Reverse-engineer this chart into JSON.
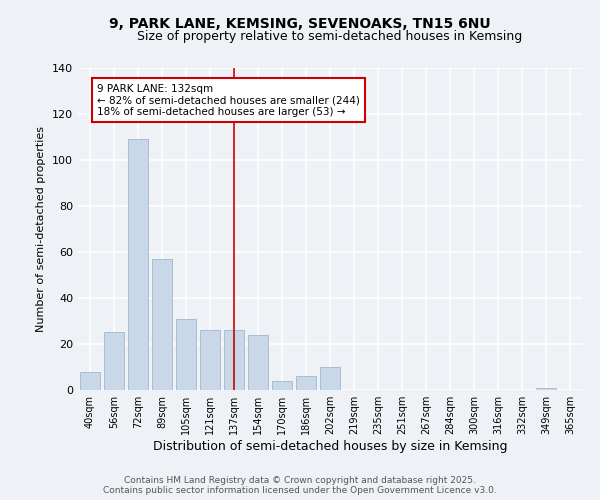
{
  "title": "9, PARK LANE, KEMSING, SEVENOAKS, TN15 6NU",
  "subtitle": "Size of property relative to semi-detached houses in Kemsing",
  "xlabel": "Distribution of semi-detached houses by size in Kemsing",
  "ylabel": "Number of semi-detached properties",
  "bar_labels": [
    "40sqm",
    "56sqm",
    "72sqm",
    "89sqm",
    "105sqm",
    "121sqm",
    "137sqm",
    "154sqm",
    "170sqm",
    "186sqm",
    "202sqm",
    "219sqm",
    "235sqm",
    "251sqm",
    "267sqm",
    "284sqm",
    "300sqm",
    "316sqm",
    "332sqm",
    "349sqm",
    "365sqm"
  ],
  "bar_values": [
    8,
    25,
    109,
    57,
    31,
    26,
    26,
    24,
    4,
    6,
    10,
    0,
    0,
    0,
    0,
    0,
    0,
    0,
    0,
    1,
    0
  ],
  "bar_color": "#c8d8e8",
  "bar_edge_color": "#a0b8cc",
  "annotation_text": "9 PARK LANE: 132sqm\n← 82% of semi-detached houses are smaller (244)\n18% of semi-detached houses are larger (53) →",
  "annotation_box_color": "#ffffff",
  "annotation_box_edge_color": "#cc0000",
  "subject_line_color": "#cc0000",
  "ylim": [
    0,
    140
  ],
  "yticks": [
    0,
    20,
    40,
    60,
    80,
    100,
    120,
    140
  ],
  "footer_text": "Contains HM Land Registry data © Crown copyright and database right 2025.\nContains public sector information licensed under the Open Government Licence v3.0.",
  "background_color": "#eef2f7",
  "grid_color": "#ffffff",
  "title_fontsize": 10,
  "subtitle_fontsize": 9
}
